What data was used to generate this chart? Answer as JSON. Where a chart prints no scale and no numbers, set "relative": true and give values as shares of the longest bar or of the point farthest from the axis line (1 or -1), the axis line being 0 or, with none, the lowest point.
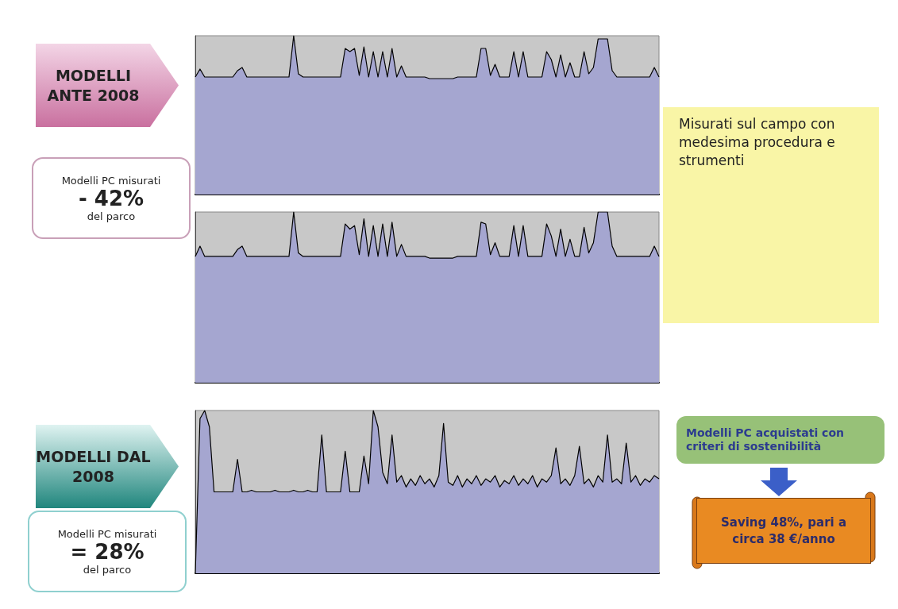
{
  "chart_data": [
    {
      "type": "area",
      "relative": true,
      "color": "#a5a6d0",
      "categories": [
        null,
        null,
        null,
        null,
        null,
        null,
        null,
        null,
        null,
        null,
        null,
        null,
        null,
        null,
        null,
        null,
        null,
        null,
        null,
        null,
        null,
        null,
        null,
        null,
        null,
        null,
        null,
        null,
        null,
        null,
        null,
        null,
        null,
        null,
        null,
        null,
        null,
        null,
        null,
        null,
        null,
        null,
        null,
        null,
        null,
        null,
        null,
        null,
        null,
        null,
        null,
        null,
        null,
        null,
        null,
        null,
        null,
        null,
        null,
        null,
        null,
        null,
        null,
        null,
        null,
        null,
        null,
        null,
        null,
        null,
        null,
        null,
        null,
        null,
        null,
        null,
        null,
        null,
        null,
        null,
        null,
        null,
        null,
        null,
        null,
        null,
        null,
        null,
        null,
        null,
        null,
        null,
        null,
        null,
        null,
        null,
        null,
        null,
        null,
        null
      ],
      "values": [
        0.74,
        0.79,
        0.74,
        0.74,
        0.74,
        0.74,
        0.74,
        0.74,
        0.74,
        0.78,
        0.8,
        0.74,
        0.74,
        0.74,
        0.74,
        0.74,
        0.74,
        0.74,
        0.74,
        0.74,
        0.74,
        1,
        0.76,
        0.74,
        0.74,
        0.74,
        0.74,
        0.74,
        0.74,
        0.74,
        0.74,
        0.74,
        0.92,
        0.9,
        0.92,
        0.75,
        0.93,
        0.74,
        0.9,
        0.74,
        0.9,
        0.74,
        0.92,
        0.74,
        0.81,
        0.74,
        0.74,
        0.74,
        0.74,
        0.74,
        0.73,
        0.73,
        0.73,
        0.73,
        0.73,
        0.73,
        0.74,
        0.74,
        0.74,
        0.74,
        0.74,
        0.92,
        0.92,
        0.75,
        0.82,
        0.74,
        0.74,
        0.74,
        0.9,
        0.74,
        0.9,
        0.74,
        0.74,
        0.74,
        0.74,
        0.9,
        0.85,
        0.74,
        0.88,
        0.74,
        0.83,
        0.74,
        0.74,
        0.9,
        0.76,
        0.8,
        0.98,
        0.98,
        0.98,
        0.78,
        0.74,
        0.74,
        0.74,
        0.74,
        0.74,
        0.74,
        0.74,
        0.74,
        0.8,
        0.74
      ]
    },
    {
      "type": "area",
      "relative": true,
      "color": "#a5a6d0",
      "categories": [
        null,
        null,
        null,
        null,
        null,
        null,
        null,
        null,
        null,
        null,
        null,
        null,
        null,
        null,
        null,
        null,
        null,
        null,
        null,
        null,
        null,
        null,
        null,
        null,
        null,
        null,
        null,
        null,
        null,
        null,
        null,
        null,
        null,
        null,
        null,
        null,
        null,
        null,
        null,
        null,
        null,
        null,
        null,
        null,
        null,
        null,
        null,
        null,
        null,
        null,
        null,
        null,
        null,
        null,
        null,
        null,
        null,
        null,
        null,
        null,
        null,
        null,
        null,
        null,
        null,
        null,
        null,
        null,
        null,
        null,
        null,
        null,
        null,
        null,
        null,
        null,
        null,
        null,
        null,
        null,
        null,
        null,
        null,
        null,
        null,
        null,
        null,
        null,
        null,
        null,
        null,
        null,
        null,
        null,
        null,
        null,
        null,
        null,
        null,
        null
      ],
      "values": [
        0.74,
        0.8,
        0.74,
        0.74,
        0.74,
        0.74,
        0.74,
        0.74,
        0.74,
        0.78,
        0.8,
        0.74,
        0.74,
        0.74,
        0.74,
        0.74,
        0.74,
        0.74,
        0.74,
        0.74,
        0.74,
        1,
        0.76,
        0.74,
        0.74,
        0.74,
        0.74,
        0.74,
        0.74,
        0.74,
        0.74,
        0.74,
        0.93,
        0.9,
        0.92,
        0.75,
        0.96,
        0.74,
        0.92,
        0.74,
        0.93,
        0.74,
        0.94,
        0.74,
        0.81,
        0.74,
        0.74,
        0.74,
        0.74,
        0.74,
        0.73,
        0.73,
        0.73,
        0.73,
        0.73,
        0.73,
        0.74,
        0.74,
        0.74,
        0.74,
        0.74,
        0.94,
        0.93,
        0.75,
        0.82,
        0.74,
        0.74,
        0.74,
        0.92,
        0.74,
        0.92,
        0.74,
        0.74,
        0.74,
        0.74,
        0.93,
        0.86,
        0.74,
        0.9,
        0.74,
        0.84,
        0.74,
        0.74,
        0.91,
        0.76,
        0.82,
        1,
        1,
        1,
        0.8,
        0.74,
        0.74,
        0.74,
        0.74,
        0.74,
        0.74,
        0.74,
        0.74,
        0.8,
        0.74
      ]
    },
    {
      "type": "area",
      "relative": true,
      "color": "#a5a6d0",
      "categories": [
        null,
        null,
        null,
        null,
        null,
        null,
        null,
        null,
        null,
        null,
        null,
        null,
        null,
        null,
        null,
        null,
        null,
        null,
        null,
        null,
        null,
        null,
        null,
        null,
        null,
        null,
        null,
        null,
        null,
        null,
        null,
        null,
        null,
        null,
        null,
        null,
        null,
        null,
        null,
        null,
        null,
        null,
        null,
        null,
        null,
        null,
        null,
        null,
        null,
        null,
        null,
        null,
        null,
        null,
        null,
        null,
        null,
        null,
        null,
        null,
        null,
        null,
        null,
        null,
        null,
        null,
        null,
        null,
        null,
        null,
        null,
        null,
        null,
        null,
        null,
        null,
        null,
        null,
        null,
        null,
        null,
        null,
        null,
        null,
        null,
        null,
        null,
        null,
        null,
        null,
        null,
        null,
        null,
        null,
        null,
        null,
        null,
        null,
        null,
        null
      ],
      "values": [
        0,
        0.95,
        1,
        0.9,
        0.5,
        0.5,
        0.5,
        0.5,
        0.5,
        0.7,
        0.5,
        0.5,
        0.51,
        0.5,
        0.5,
        0.5,
        0.5,
        0.51,
        0.5,
        0.5,
        0.5,
        0.51,
        0.5,
        0.5,
        0.51,
        0.5,
        0.5,
        0.85,
        0.5,
        0.5,
        0.5,
        0.5,
        0.75,
        0.5,
        0.5,
        0.5,
        0.72,
        0.55,
        1,
        0.9,
        0.62,
        0.55,
        0.85,
        0.56,
        0.6,
        0.53,
        0.58,
        0.54,
        0.6,
        0.55,
        0.58,
        0.53,
        0.6,
        0.92,
        0.56,
        0.54,
        0.6,
        0.53,
        0.58,
        0.55,
        0.6,
        0.54,
        0.58,
        0.56,
        0.6,
        0.53,
        0.57,
        0.55,
        0.6,
        0.54,
        0.58,
        0.55,
        0.6,
        0.53,
        0.58,
        0.56,
        0.6,
        0.77,
        0.55,
        0.58,
        0.54,
        0.6,
        0.78,
        0.55,
        0.58,
        0.53,
        0.6,
        0.56,
        0.85,
        0.56,
        0.58,
        0.55,
        0.8,
        0.56,
        0.6,
        0.54,
        0.58,
        0.56,
        0.6,
        0.58
      ]
    },
    {
      "type": "other",
      "annotations": [
        "MODELLI ANTE 2008",
        "Modelli PC misurati",
        "- 42%",
        "del parco",
        "Misurati sul campo con medesima procedura e strumenti",
        "MODELLI DAL 2008",
        "Modelli PC misurati",
        "= 28%",
        "del parco",
        "Modelli PC acquistati con criteri di sostenibilità",
        "Saving 48%, pari a circa 38 €/anno"
      ]
    }
  ]
}
